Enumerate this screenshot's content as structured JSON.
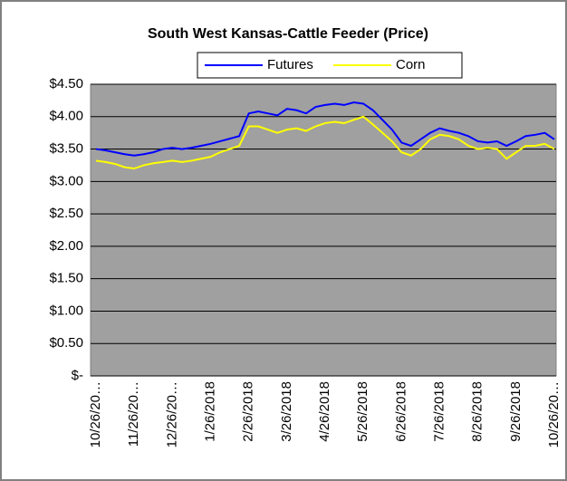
{
  "chart_data": {
    "type": "line",
    "title": "South West Kansas-Cattle Feeder (Price)",
    "categories": [
      "10/26/20…",
      null,
      null,
      null,
      "11/26/20…",
      null,
      null,
      null,
      "12/26/20…",
      null,
      null,
      null,
      "1/26/2018",
      null,
      null,
      null,
      "2/26/2018",
      null,
      null,
      null,
      "3/26/2018",
      null,
      null,
      null,
      "4/26/2018",
      null,
      null,
      null,
      "5/26/2018",
      null,
      null,
      null,
      "6/26/2018",
      null,
      null,
      null,
      "7/26/2018",
      null,
      null,
      null,
      "8/26/2018",
      null,
      null,
      null,
      "9/26/2018",
      null,
      null,
      null,
      "10/26/20…"
    ],
    "series": [
      {
        "name": "Futures",
        "color": "#0000ff",
        "values": [
          3.5,
          3.48,
          3.45,
          3.42,
          3.4,
          3.42,
          3.45,
          3.5,
          3.52,
          3.5,
          3.52,
          3.55,
          3.58,
          3.62,
          3.66,
          3.7,
          4.05,
          4.08,
          4.05,
          4.02,
          4.12,
          4.1,
          4.05,
          4.15,
          4.18,
          4.2,
          4.18,
          4.22,
          4.2,
          4.1,
          3.95,
          3.8,
          3.6,
          3.55,
          3.65,
          3.75,
          3.82,
          3.78,
          3.75,
          3.7,
          3.62,
          3.6,
          3.62,
          3.55,
          3.62,
          3.7,
          3.72,
          3.75,
          3.65
        ]
      },
      {
        "name": "Corn",
        "color": "#ffff00",
        "values": [
          3.32,
          3.3,
          3.27,
          3.22,
          3.2,
          3.25,
          3.28,
          3.3,
          3.32,
          3.3,
          3.32,
          3.35,
          3.38,
          3.45,
          3.5,
          3.55,
          3.85,
          3.85,
          3.8,
          3.75,
          3.8,
          3.82,
          3.78,
          3.85,
          3.9,
          3.92,
          3.9,
          3.95,
          4.0,
          3.88,
          3.75,
          3.62,
          3.45,
          3.4,
          3.5,
          3.65,
          3.72,
          3.7,
          3.65,
          3.55,
          3.5,
          3.52,
          3.5,
          3.35,
          3.45,
          3.55,
          3.55,
          3.58,
          3.5
        ]
      }
    ],
    "ylim": [
      0,
      4.5
    ],
    "yticks": [
      {
        "value": 0,
        "label": "$-"
      },
      {
        "value": 0.5,
        "label": "$0.50"
      },
      {
        "value": 1,
        "label": "$1.00"
      },
      {
        "value": 1.5,
        "label": "$1.50"
      },
      {
        "value": 2,
        "label": "$2.00"
      },
      {
        "value": 2.5,
        "label": "$2.50"
      },
      {
        "value": 3,
        "label": "$3.00"
      },
      {
        "value": 3.5,
        "label": "$3.50"
      },
      {
        "value": 4,
        "label": "$4.00"
      },
      {
        "value": 4.5,
        "label": "$4.50"
      }
    ],
    "grid": true
  }
}
